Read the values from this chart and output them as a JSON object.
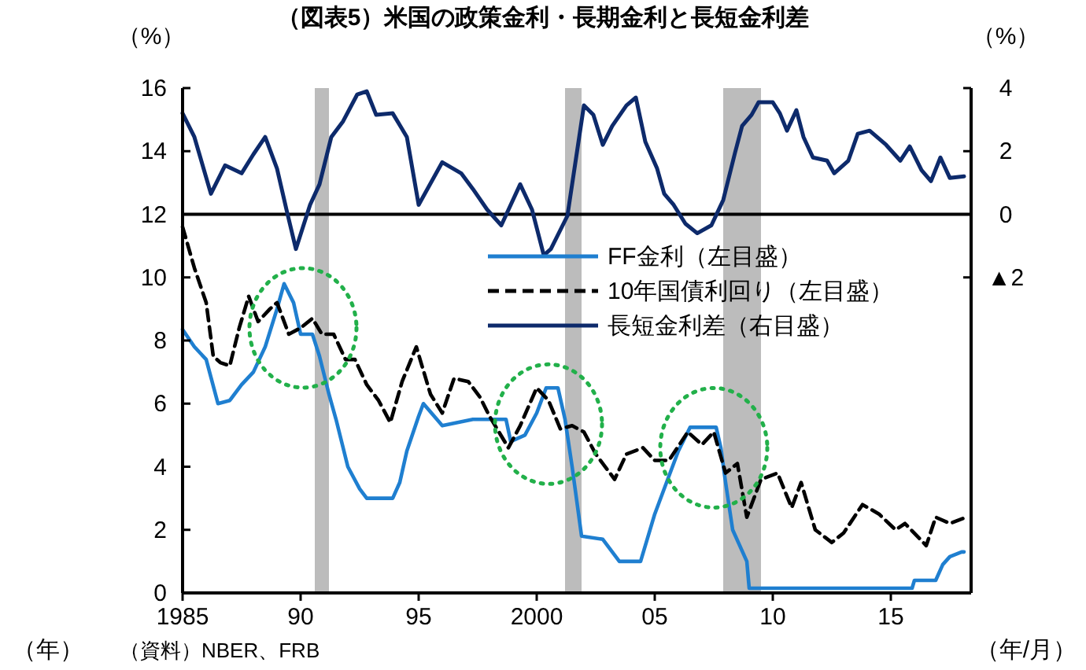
{
  "chart_data": {
    "type": "line",
    "title": "（図表5）米国の政策金利・長期金利と長短金利差",
    "ylabel": "（%）",
    "y2label": "（%）",
    "xlabel": "（年/月）",
    "annotations": [
      "（年）",
      "（資料）NBER、FRB"
    ],
    "xlim": [
      1985,
      2018.4
    ],
    "xticks": [
      {
        "value": 1985,
        "label": "1985"
      },
      {
        "value": 1990,
        "label": "90"
      },
      {
        "value": 1995,
        "label": "95"
      },
      {
        "value": 2000,
        "label": "2000"
      },
      {
        "value": 2005,
        "label": "05"
      },
      {
        "value": 2010,
        "label": "10"
      },
      {
        "value": 2015,
        "label": "15"
      }
    ],
    "ylim": [
      0,
      16
    ],
    "yticks": [
      0,
      2,
      4,
      6,
      8,
      10,
      12,
      14,
      16
    ],
    "y2lim": [
      -12,
      4
    ],
    "y2ticks": [
      4,
      2,
      0,
      {
        "value": -2,
        "label": "▲2"
      }
    ],
    "legend": "right",
    "grid": false,
    "ref_lines": [
      {
        "axis": "y2",
        "value": 0,
        "color": "#000000"
      }
    ],
    "bands": [
      {
        "axis": "x",
        "from": 1990.6,
        "to": 1991.2,
        "color": "#b0b0b0"
      },
      {
        "axis": "x",
        "from": 2001.2,
        "to": 2001.9,
        "color": "#b0b0b0"
      },
      {
        "axis": "x",
        "from": 2007.9,
        "to": 2009.5,
        "color": "#b0b0b0"
      }
    ],
    "series": [
      {
        "name": "FF金利（左目盛）",
        "color": "#1f7fd0",
        "line_style": "solid",
        "x": [
          1985,
          1985.5,
          1986,
          1986.5,
          1987,
          1987.5,
          1988,
          1988.5,
          1989,
          1989.3,
          1989.7,
          1990,
          1990.5,
          1990.8,
          1991.2,
          1991.5,
          1992,
          1992.5,
          1992.8,
          1993.9,
          1994.2,
          1994.5,
          1995,
          1995.2,
          1996,
          1997.3,
          1998.7,
          1998.9,
          1999.5,
          2000,
          2000.4,
          2000.9,
          2001.2,
          2001.5,
          2001.9,
          2002.8,
          2003.5,
          2004.4,
          2005,
          2005.5,
          2006,
          2006.5,
          2007.6,
          2007.8,
          2008,
          2008.3,
          2008.9,
          2009,
          2015.9,
          2016,
          2016.9,
          2017.2,
          2017.5,
          2018,
          2018.1
        ],
        "values": [
          8.35,
          7.8,
          7.4,
          6.0,
          6.1,
          6.6,
          7.0,
          7.8,
          9.0,
          9.8,
          9.2,
          8.2,
          8.2,
          7.5,
          6.3,
          5.5,
          4.0,
          3.3,
          3.0,
          3.0,
          3.5,
          4.5,
          5.6,
          6.0,
          5.3,
          5.5,
          5.5,
          4.8,
          5.0,
          5.7,
          6.5,
          6.5,
          5.5,
          4.0,
          1.8,
          1.7,
          1.0,
          1.0,
          2.5,
          3.5,
          4.5,
          5.25,
          5.25,
          4.6,
          3.5,
          2.0,
          1.0,
          0.15,
          0.15,
          0.4,
          0.4,
          0.9,
          1.15,
          1.3,
          1.3
        ]
      },
      {
        "name": "10年国債利回り（左目盛）",
        "color": "#000000",
        "line_style": "dashed",
        "x": [
          1985,
          1985.5,
          1986,
          1986.3,
          1986.6,
          1987,
          1987.4,
          1987.8,
          1988.2,
          1988.7,
          1989,
          1989.5,
          1990,
          1990.5,
          1990.9,
          1991.4,
          1991.9,
          1992.3,
          1992.8,
          1993.3,
          1993.8,
          1994.3,
          1994.9,
          1995.5,
          1996,
          1996.5,
          1997.1,
          1997.6,
          1998,
          1998.8,
          1999.3,
          2000,
          2000.5,
          2001,
          2001.5,
          2002,
          2002.5,
          2003.3,
          2003.8,
          2004.5,
          2005,
          2005.6,
          2006.4,
          2007,
          2007.5,
          2008,
          2008.5,
          2008.9,
          2009.5,
          2010.2,
          2010.8,
          2011.2,
          2011.8,
          2012.5,
          2013,
          2013.8,
          2014.5,
          2015.2,
          2015.6,
          2016.5,
          2016.9,
          2017.5,
          2018.2
        ],
        "values": [
          11.6,
          10.3,
          9.2,
          7.5,
          7.3,
          7.2,
          8.4,
          9.4,
          8.6,
          9.0,
          9.2,
          8.2,
          8.4,
          8.7,
          8.2,
          8.2,
          7.4,
          7.4,
          6.6,
          6.1,
          5.4,
          6.7,
          7.8,
          6.3,
          5.7,
          6.8,
          6.7,
          6.2,
          5.6,
          4.6,
          5.3,
          6.5,
          6.1,
          5.2,
          5.3,
          5.1,
          4.4,
          3.6,
          4.4,
          4.6,
          4.2,
          4.2,
          5.1,
          4.7,
          5.1,
          3.8,
          4.1,
          2.4,
          3.6,
          3.8,
          2.7,
          3.5,
          2.0,
          1.6,
          1.9,
          2.8,
          2.5,
          2.0,
          2.2,
          1.5,
          2.4,
          2.2,
          2.4
        ]
      },
      {
        "name": "長短金利差（右目盛）",
        "color": "#0d2a6b",
        "line_style": "solid",
        "axis": "y2",
        "x": [
          1985,
          1985.5,
          1986.2,
          1986.8,
          1987.5,
          1988,
          1988.5,
          1989,
          1989.4,
          1989.8,
          1990.4,
          1990.8,
          1991.3,
          1991.8,
          1992.4,
          1992.8,
          1993.2,
          1993.9,
          1994.5,
          1995,
          1996,
          1996.8,
          1997.3,
          1997.9,
          1998.5,
          1999.3,
          1999.8,
          2000.3,
          2000.6,
          2001.3,
          2001.6,
          2002,
          2002.4,
          2002.8,
          2003.2,
          2003.8,
          2004.2,
          2004.6,
          2005.1,
          2005.4,
          2005.8,
          2006.3,
          2006.8,
          2007.4,
          2007.9,
          2008.4,
          2008.7,
          2009.1,
          2009.4,
          2010,
          2010.3,
          2010.6,
          2011,
          2011.3,
          2011.7,
          2012.3,
          2012.6,
          2013.2,
          2013.6,
          2014.1,
          2014.8,
          2015.4,
          2015.8,
          2016.3,
          2016.7,
          2017.1,
          2017.5,
          2018.1
        ],
        "values": [
          3.2,
          2.45,
          0.65,
          1.55,
          1.3,
          1.9,
          2.45,
          1.45,
          0.15,
          -1.1,
          0.3,
          0.95,
          2.45,
          2.95,
          3.8,
          3.9,
          3.15,
          3.2,
          2.45,
          0.3,
          1.65,
          1.3,
          0.8,
          0.15,
          -0.35,
          0.95,
          0.15,
          -1.3,
          -1.1,
          -0.05,
          1.45,
          3.45,
          3.15,
          2.2,
          2.8,
          3.45,
          3.7,
          2.3,
          1.45,
          0.65,
          0.3,
          -0.3,
          -0.6,
          -0.35,
          0.45,
          1.95,
          2.8,
          3.15,
          3.55,
          3.55,
          3.2,
          2.65,
          3.3,
          2.45,
          1.8,
          1.7,
          1.3,
          1.7,
          2.55,
          2.65,
          2.2,
          1.7,
          2.15,
          1.4,
          1.05,
          1.8,
          1.15,
          1.2
        ]
      }
    ]
  }
}
